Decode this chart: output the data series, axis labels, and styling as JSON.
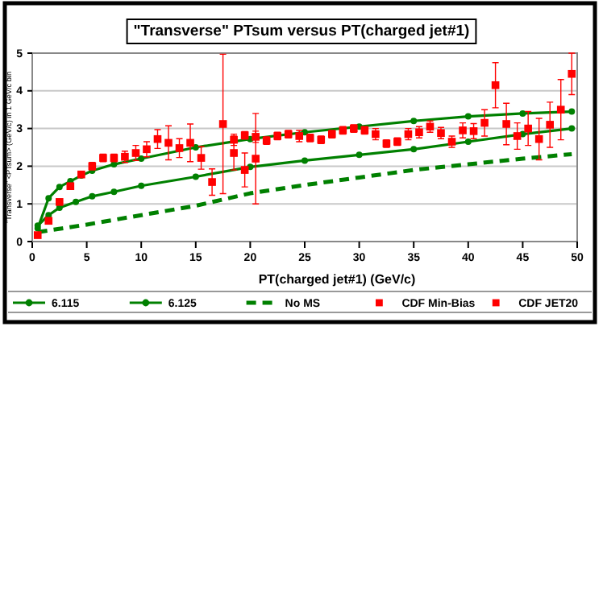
{
  "chart_data": {
    "type": "line",
    "title": "\"Transverse\" PTsum versus PT(charged jet#1)",
    "xlabel": "PT(charged jet#1)  (GeV/c)",
    "ylabel": "\"Transverse\" <PTsum> (GeV/c) in 1 GeV/c bin",
    "xlim": [
      0,
      50
    ],
    "xticks": [
      0,
      5,
      10,
      15,
      20,
      25,
      30,
      35,
      40,
      45,
      50
    ],
    "ylim": [
      0,
      5
    ],
    "yticks": [
      0,
      1,
      2,
      3,
      4,
      5
    ],
    "grid": "y",
    "legend": "bottom",
    "series": [
      {
        "name": "6.115",
        "color": "#008000",
        "marker": "circle",
        "line_style": "solid",
        "x": [
          0.5,
          1.5,
          2.5,
          3.5,
          4.5,
          5.5,
          7.5,
          10,
          15,
          20,
          25,
          30,
          35,
          40,
          45,
          49.5
        ],
        "values": [
          0.35,
          1.15,
          1.45,
          1.6,
          1.75,
          1.88,
          2.05,
          2.2,
          2.5,
          2.72,
          2.9,
          3.05,
          3.2,
          3.32,
          3.4,
          3.45
        ]
      },
      {
        "name": "6.125",
        "color": "#008000",
        "marker": "circle",
        "line_style": "solid",
        "x": [
          0.5,
          1.5,
          2.5,
          4,
          5.5,
          7.5,
          10,
          15,
          20,
          25,
          30,
          35,
          40,
          45,
          49.5
        ],
        "values": [
          0.42,
          0.7,
          0.9,
          1.05,
          1.2,
          1.32,
          1.48,
          1.72,
          1.98,
          2.15,
          2.3,
          2.45,
          2.65,
          2.85,
          3.0
        ]
      },
      {
        "name": "No MS",
        "color": "#008000",
        "marker": "none",
        "line_style": "dashed",
        "x": [
          0.5,
          5,
          10,
          15,
          20,
          25,
          30,
          35,
          40,
          45,
          49.5
        ],
        "values": [
          0.25,
          0.45,
          0.7,
          0.95,
          1.28,
          1.5,
          1.7,
          1.9,
          2.05,
          2.2,
          2.32
        ]
      },
      {
        "name": "CDF Min-Bias",
        "type": "scatter",
        "color": "#ff0000",
        "marker": "square",
        "x": [
          0.5,
          1.5,
          2.5,
          3.5,
          4.5,
          5.5,
          6.5,
          7.5,
          8.5,
          9.5,
          10.5,
          11.5,
          12.5,
          13.5,
          14.5,
          15.5,
          16.5,
          17.5,
          18.5,
          19.5,
          20.5
        ],
        "values": [
          0.17,
          0.55,
          1.05,
          1.47,
          1.78,
          2.0,
          2.22,
          2.22,
          2.25,
          2.35,
          2.45,
          2.72,
          2.62,
          2.48,
          2.62,
          2.22,
          1.58,
          3.12,
          2.35,
          1.9,
          2.2
        ],
        "errors": [
          0.05,
          0.05,
          0.05,
          0.05,
          0.05,
          0.1,
          0.1,
          0.1,
          0.15,
          0.2,
          0.2,
          0.25,
          0.45,
          0.25,
          0.5,
          0.3,
          0.35,
          1.85,
          0.45,
          0.45,
          1.2
        ]
      },
      {
        "name": "CDF JET20",
        "type": "scatter",
        "color": "#ff0000",
        "marker": "square",
        "x": [
          18.5,
          19.5,
          20.5,
          21.5,
          22.5,
          23.5,
          24.5,
          25.5,
          26.5,
          27.5,
          28.5,
          29.5,
          30.5,
          31.5,
          32.5,
          33.5,
          34.5,
          35.5,
          36.5,
          37.5,
          38.5,
          39.5,
          40.5,
          41.5,
          42.5,
          43.5,
          44.5,
          45.5,
          46.5,
          47.5,
          48.5,
          49.5
        ],
        "values": [
          2.7,
          2.82,
          2.78,
          2.68,
          2.8,
          2.85,
          2.8,
          2.75,
          2.7,
          2.85,
          2.95,
          3.0,
          2.95,
          2.85,
          2.6,
          2.65,
          2.85,
          2.9,
          3.05,
          2.88,
          2.65,
          2.95,
          2.93,
          3.15,
          4.15,
          3.12,
          2.8,
          3.0,
          2.72,
          3.1,
          3.5,
          4.45
        ],
        "errors": [
          0.15,
          0.1,
          0.15,
          0.1,
          0.1,
          0.1,
          0.15,
          0.1,
          0.1,
          0.1,
          0.1,
          0.1,
          0.1,
          0.15,
          0.1,
          0.1,
          0.15,
          0.15,
          0.15,
          0.15,
          0.15,
          0.2,
          0.2,
          0.35,
          0.6,
          0.55,
          0.35,
          0.45,
          0.55,
          0.6,
          0.8,
          0.55
        ]
      }
    ]
  }
}
